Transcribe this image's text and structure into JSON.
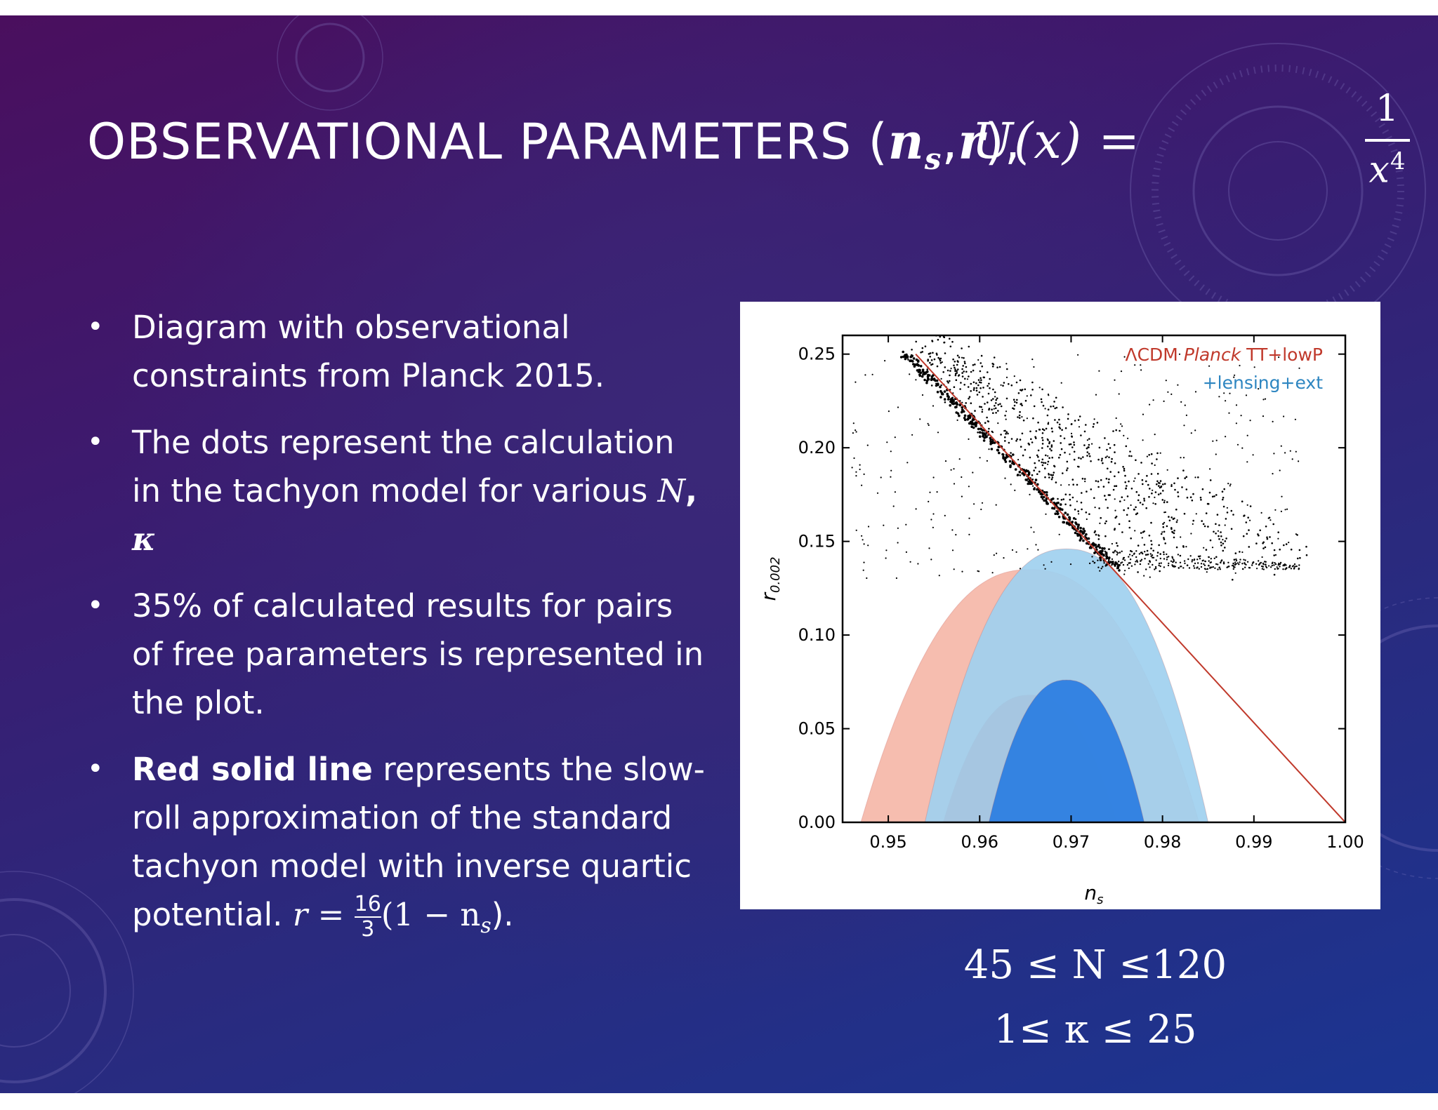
{
  "slide": {
    "title_text": "OBSERVATIONAL PARAMETERS (",
    "title_ns": "n",
    "title_ns_sub": "s",
    "title_sep": ",",
    "title_r": "r",
    "title_close": "),",
    "title_eq": "U(x) =",
    "title_frac_num": "1",
    "title_frac_den": "x",
    "title_frac_den_exp": "4"
  },
  "bullets": {
    "b1": "Diagram with observational constraints from Planck 2015.",
    "b2_text": "The dots represent the calculation in the tachyon model for various",
    "b2_N": "N",
    "b2_comma": ",",
    "b2_kappa": "κ",
    "b3": "35% of calculated results for pairs of free parameters is represented in the plot.",
    "b4_bold": "Red solid line",
    "b4_text": "represents the slow-roll approximation of the standard tachyon model with inverse quartic potential.",
    "b4_formula_lhs": "r =",
    "b4_frac_num": "16",
    "b4_frac_den": "3",
    "b4_formula_rhs": "(1 − n",
    "b4_formula_sub": "s",
    "b4_formula_end": ")."
  },
  "ranges": {
    "line1": "45 ≤ N ≤120",
    "line2": "1≤ κ ≤ 25"
  },
  "chart_data": {
    "type": "scatter",
    "xlabel": "n",
    "xlabel_sub": "s",
    "ylabel": "r",
    "ylabel_sub": "0.002",
    "xlim": [
      0.945,
      1.0
    ],
    "ylim": [
      0.0,
      0.26
    ],
    "x_ticks": [
      "0.95",
      "0.96",
      "0.97",
      "0.98",
      "0.99",
      "1.00"
    ],
    "y_ticks": [
      "0.00",
      "0.05",
      "0.10",
      "0.15",
      "0.20",
      "0.25"
    ],
    "grid": false,
    "legend_position": "top-right",
    "legend": [
      {
        "lambda": "Λ",
        "cdm": "CDM ",
        "planck": "Planck",
        "rest": " TT+lowP",
        "color": "#c0392b"
      },
      {
        "text": "+lensing+ext",
        "color": "#2e86c1"
      }
    ],
    "slow_roll_line": {
      "label": "r = 16/3 (1 − n_s)",
      "color": "#c0392b",
      "x": [
        0.953,
        1.0
      ],
      "y": [
        0.25,
        0.0
      ]
    },
    "contours": {
      "planck_68": {
        "color": "#e74c3c",
        "center_ns": 0.9655,
        "r_top": 0.068,
        "half_width": 0.0095
      },
      "planck_95": {
        "color": "#f5b7a8",
        "center_ns": 0.9655,
        "r_top": 0.135,
        "half_width": 0.0185
      },
      "ext_68": {
        "color": "#2a7de1",
        "center_ns": 0.9695,
        "r_top": 0.076,
        "half_width": 0.0085
      },
      "ext_95": {
        "color": "#9fd0ef",
        "center_ns": 0.9695,
        "r_top": 0.146,
        "half_width": 0.0155
      }
    },
    "tachyon_dots": {
      "color": "#000000",
      "description_in_plot": "dense band from (0.952, 0.25) to (0.975, 0.135), scattered cloud above",
      "band_start": [
        0.952,
        0.25
      ],
      "band_end": [
        0.975,
        0.135
      ],
      "cloud_x_range": [
        0.946,
        0.995
      ],
      "cloud_y_range": [
        0.13,
        0.25
      ]
    }
  }
}
